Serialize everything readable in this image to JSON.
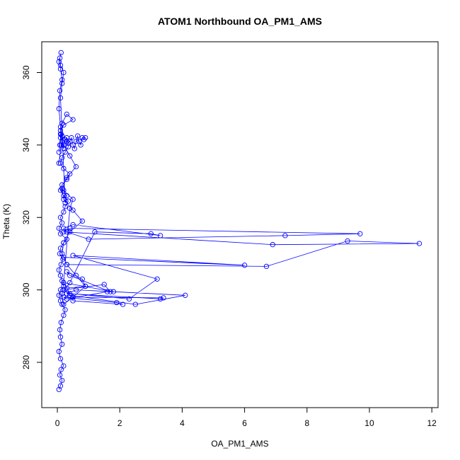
{
  "chart_data": {
    "type": "line",
    "title": "ATOM1 Northbound OA_PM1_AMS",
    "xlabel": "OA_PM1_AMS",
    "ylabel": "Theta (K)",
    "xlim": [
      -0.5,
      12.2
    ],
    "ylim": [
      267.5,
      368.5
    ],
    "xticks": [
      0,
      2,
      4,
      6,
      8,
      10,
      12
    ],
    "yticks": [
      280,
      300,
      320,
      340,
      360
    ],
    "grid": false,
    "legend": "none",
    "marker": "open-circle",
    "color": "#0000ff",
    "series": [
      {
        "x": [
          0.05,
          0.1,
          0.15,
          0.08,
          0.12,
          0.2,
          0.1,
          0.05,
          0.15,
          0.1,
          0.08,
          0.12,
          0.2,
          0.25,
          0.15,
          0.1,
          0.05,
          0.1,
          0.2,
          0.15,
          0.1,
          0.05,
          0.12,
          0.18,
          0.08,
          0.1,
          0.2,
          0.3,
          0.1,
          0.05,
          0.15,
          0.1,
          0.2,
          0.25,
          0.35,
          0.2,
          0.1,
          0.15,
          0.3,
          0.4,
          0.2,
          0.1,
          0.15,
          0.25,
          0.35,
          0.3,
          0.15,
          0.1,
          0.2,
          0.5,
          0.3,
          0.15,
          0.1,
          0.2,
          0.4,
          0.6,
          0.3,
          0.15,
          0.2,
          0.5,
          0.8,
          0.4,
          0.2,
          0.15,
          0.3,
          0.6,
          0.9,
          0.5,
          0.2,
          0.15,
          0.4,
          1.2,
          3.0,
          3.3,
          0.5,
          0.2,
          0.3,
          1.0,
          7.3,
          9.7,
          0.4,
          0.2,
          6.9,
          11.6,
          9.3,
          6.7,
          0.3,
          0.2,
          6.0,
          0.5,
          3.2,
          2.3,
          0.4,
          0.2,
          1.8,
          1.6,
          0.3,
          0.2,
          1.9,
          2.1,
          0.5,
          0.4,
          2.5,
          4.1,
          0.6,
          0.3,
          3.3,
          3.4,
          0.5,
          0.2,
          1.5,
          1.7,
          0.4,
          0.3,
          0.8,
          0.9,
          0.3,
          0.2,
          0.4,
          0.5,
          0.2,
          0.15,
          0.3,
          0.25,
          0.1,
          0.15,
          0.2,
          0.1,
          0.08,
          0.12,
          0.05,
          0.1,
          0.15,
          0.08,
          0.05,
          0.1,
          0.12,
          0.05
        ],
        "y": [
          272.5,
          273.5,
          275,
          276.5,
          278,
          279,
          281,
          283,
          285,
          287,
          289,
          291,
          293,
          294.5,
          296,
          297,
          298.5,
          300,
          301,
          302.5,
          304,
          305.5,
          307,
          308.5,
          310,
          311.5,
          313,
          314,
          315.5,
          317,
          318.5,
          320,
          321.5,
          323,
          324.5,
          326,
          327.5,
          329,
          330.5,
          332,
          333.5,
          335,
          336.5,
          338,
          339.5,
          341,
          342.5,
          344,
          345.5,
          347,
          348.5,
          346,
          343,
          340,
          337,
          334,
          331,
          328,
          325,
          322,
          319,
          316,
          313,
          310,
          307,
          304,
          301,
          298,
          296,
          299,
          302,
          316,
          315.5,
          315,
          318,
          317,
          316,
          314,
          315,
          315.5,
          317,
          316,
          312.5,
          312.8,
          313.5,
          306.5,
          307,
          309,
          306.8,
          309.5,
          303,
          297.5,
          299,
          302,
          299.5,
          299.5,
          297.5,
          298,
          296.5,
          296,
          297,
          298.5,
          296,
          298.5,
          300,
          299,
          297.5,
          297.8,
          298,
          300,
          301.5,
          299.5,
          304,
          305,
          303,
          301,
          300.5,
          302,
          322.5,
          325,
          327.5,
          328,
          326,
          324,
          353,
          357,
          360,
          362,
          364,
          365.5,
          363,
          361,
          358,
          355,
          350,
          345,
          340,
          335
        ]
      },
      {
        "x": [
          0.05,
          0.08,
          0.1,
          0.12,
          0.15,
          0.2,
          0.25,
          0.3,
          0.35,
          0.4,
          0.45,
          0.5,
          0.55,
          0.6,
          0.65,
          0.7,
          0.75,
          0.8,
          0.85,
          0.9
        ],
        "y": [
          338,
          340,
          342,
          343,
          341,
          339,
          341.5,
          342,
          340.5,
          341,
          342,
          340,
          339,
          341,
          342.5,
          341,
          340,
          342,
          341.5,
          342
        ]
      }
    ]
  }
}
